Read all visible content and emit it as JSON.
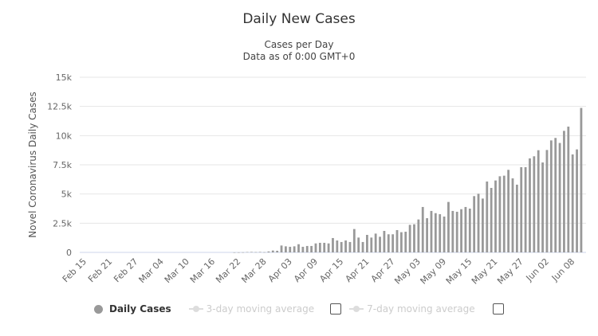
{
  "chart_data": {
    "type": "bar",
    "title": "Daily New Cases",
    "subtitle": [
      "Cases per Day",
      "Data as of 0:00 GMT+0"
    ],
    "ylabel": "Novel Coronavirus Daily Cases",
    "ylim": [
      0,
      15000
    ],
    "yticks": [
      0,
      2500,
      5000,
      7500,
      10000,
      12500,
      15000
    ],
    "ytick_labels": [
      "0",
      "2.5k",
      "5k",
      "7.5k",
      "10k",
      "12.5k",
      "15k"
    ],
    "xtick_labels": [
      "Feb 15",
      "Feb 21",
      "Feb 27",
      "Mar 04",
      "Mar 10",
      "Mar 16",
      "Mar 22",
      "Mar 28",
      "Apr 03",
      "Apr 09",
      "Apr 15",
      "Apr 21",
      "Apr 27",
      "May 03",
      "May 09",
      "May 15",
      "May 21",
      "May 27",
      "Jun 02",
      "Jun 08"
    ],
    "grid": true,
    "bar_color": "#999999",
    "legend_position": "bottom",
    "categories": [
      "Feb 15",
      "Feb 16",
      "Feb 17",
      "Feb 18",
      "Feb 19",
      "Feb 20",
      "Feb 21",
      "Feb 22",
      "Feb 23",
      "Feb 24",
      "Feb 25",
      "Feb 26",
      "Feb 27",
      "Feb 28",
      "Feb 29",
      "Mar 01",
      "Mar 02",
      "Mar 03",
      "Mar 04",
      "Mar 05",
      "Mar 06",
      "Mar 07",
      "Mar 08",
      "Mar 09",
      "Mar 10",
      "Mar 11",
      "Mar 12",
      "Mar 13",
      "Mar 14",
      "Mar 15",
      "Mar 16",
      "Mar 17",
      "Mar 18",
      "Mar 19",
      "Mar 20",
      "Mar 21",
      "Mar 22",
      "Mar 23",
      "Mar 24",
      "Mar 25",
      "Mar 26",
      "Mar 27",
      "Mar 28",
      "Mar 29",
      "Mar 30",
      "Mar 31",
      "Apr 01",
      "Apr 02",
      "Apr 03",
      "Apr 04",
      "Apr 05",
      "Apr 06",
      "Apr 07",
      "Apr 08",
      "Apr 09",
      "Apr 10",
      "Apr 11",
      "Apr 12",
      "Apr 13",
      "Apr 14",
      "Apr 15",
      "Apr 16",
      "Apr 17",
      "Apr 18",
      "Apr 19",
      "Apr 20",
      "Apr 21",
      "Apr 22",
      "Apr 23",
      "Apr 24",
      "Apr 25",
      "Apr 26",
      "Apr 27",
      "Apr 28",
      "Apr 29",
      "Apr 30",
      "May 01",
      "May 02",
      "May 03",
      "May 04",
      "May 05",
      "May 06",
      "May 07",
      "May 08",
      "May 09",
      "May 10",
      "May 11",
      "May 12",
      "May 13",
      "May 14",
      "May 15",
      "May 16",
      "May 17",
      "May 18",
      "May 19",
      "May 20",
      "May 21",
      "May 22",
      "May 23",
      "May 24",
      "May 25",
      "May 26",
      "May 27",
      "May 28",
      "May 29",
      "May 30",
      "May 31",
      "Jun 01",
      "Jun 02",
      "Jun 03",
      "Jun 04",
      "Jun 05",
      "Jun 06",
      "Jun 07",
      "Jun 08",
      "Jun 09",
      "Jun 10"
    ],
    "series": [
      {
        "name": "Daily Cases",
        "values": [
          0,
          0,
          0,
          0,
          0,
          0,
          0,
          0,
          0,
          0,
          0,
          0,
          0,
          0,
          0,
          0,
          0,
          0,
          0,
          0,
          0,
          0,
          0,
          0,
          0,
          0,
          0,
          0,
          0,
          0,
          0,
          0,
          0,
          0,
          0,
          3,
          5,
          10,
          30,
          40,
          25,
          40,
          20,
          80,
          160,
          140,
          590,
          520,
          480,
          520,
          700,
          480,
          550,
          550,
          770,
          820,
          820,
          770,
          1230,
          1020,
          890,
          1020,
          890,
          2000,
          1270,
          890,
          1500,
          1270,
          1610,
          1340,
          1840,
          1550,
          1550,
          1910,
          1730,
          1770,
          2360,
          2410,
          2820,
          3890,
          2930,
          3550,
          3360,
          3270,
          3070,
          4320,
          3550,
          3480,
          3700,
          3890,
          3750,
          4820,
          5020,
          4610,
          6070,
          5520,
          6160,
          6520,
          6570,
          7070,
          6340,
          5800,
          7300,
          7300,
          8050,
          8230,
          8750,
          7700,
          8770,
          9590,
          9800,
          9370,
          10410,
          10770,
          8390,
          8820,
          12370
        ]
      }
    ]
  },
  "legend": {
    "items": [
      {
        "label": "Daily Cases",
        "active": true
      },
      {
        "label": "3-day moving average",
        "active": false
      },
      {
        "label": "7-day moving average",
        "active": false
      }
    ]
  }
}
